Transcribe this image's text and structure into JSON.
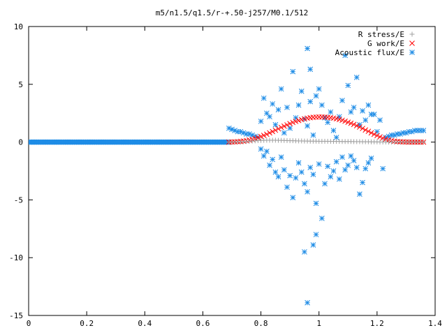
{
  "chart_data": {
    "type": "scatter",
    "title": "m5/n1.5/q1.5/r-+.50-j257/M0.1/512",
    "xlabel": "",
    "ylabel": "",
    "xlim": [
      0,
      1.4
    ],
    "ylim": [
      -15,
      10
    ],
    "x_ticks": [
      0,
      0.2,
      0.4,
      0.6,
      0.8,
      1,
      1.2,
      1.4
    ],
    "x_tick_labels": [
      "0",
      "0.2",
      "0.4",
      "0.6",
      "0.8",
      "1",
      "1.2",
      "1.4"
    ],
    "y_ticks": [
      -15,
      -10,
      -5,
      0,
      5,
      10
    ],
    "y_tick_labels": [
      "-15",
      "-10",
      "-5",
      "0",
      "5",
      "10"
    ],
    "grid": false,
    "legend_position": "top-right",
    "series": [
      {
        "name": "R stress/E",
        "marker": "plus",
        "color": "#a0a0a0",
        "description_range": [
          0.69,
          1.36
        ],
        "x": [
          0.69,
          0.7,
          0.71,
          0.72,
          0.73,
          0.74,
          0.75,
          0.76,
          0.77,
          0.78,
          0.79,
          0.8,
          0.81,
          0.82,
          0.83,
          0.84,
          0.85,
          0.86,
          0.87,
          0.88,
          0.89,
          0.9,
          0.91,
          0.92,
          0.93,
          0.94,
          0.95,
          0.96,
          0.97,
          0.98,
          0.99,
          1.0,
          1.01,
          1.02,
          1.03,
          1.04,
          1.05,
          1.06,
          1.07,
          1.08,
          1.09,
          1.1,
          1.11,
          1.12,
          1.13,
          1.14,
          1.15,
          1.16,
          1.17,
          1.18,
          1.19,
          1.2,
          1.21,
          1.22,
          1.23,
          1.24,
          1.25,
          1.26,
          1.27,
          1.28,
          1.29,
          1.3,
          1.31,
          1.32,
          1.33,
          1.34,
          1.35,
          1.36
        ],
        "y": [
          0.0,
          0.0,
          0.0,
          0.01,
          0.02,
          0.03,
          0.05,
          0.07,
          0.09,
          0.11,
          0.13,
          0.14,
          0.15,
          0.16,
          0.16,
          0.16,
          0.16,
          0.15,
          0.15,
          0.14,
          0.13,
          0.12,
          0.12,
          0.11,
          0.1,
          0.1,
          0.09,
          0.09,
          0.08,
          0.08,
          0.08,
          0.07,
          0.07,
          0.07,
          0.07,
          0.06,
          0.06,
          0.06,
          0.06,
          0.05,
          0.05,
          0.05,
          0.05,
          0.04,
          0.04,
          0.04,
          0.03,
          0.03,
          0.03,
          0.02,
          0.02,
          0.02,
          0.01,
          0.01,
          0.01,
          0.0,
          0.0,
          0.0,
          0.0,
          0.0,
          0.0,
          0.0,
          0.0,
          0.0,
          0.0,
          0.0,
          0.0,
          0.0
        ]
      },
      {
        "name": "G work/E",
        "marker": "cross",
        "color": "#ff0000",
        "x": [
          0.69,
          0.7,
          0.71,
          0.72,
          0.73,
          0.74,
          0.75,
          0.76,
          0.77,
          0.78,
          0.79,
          0.8,
          0.81,
          0.82,
          0.83,
          0.84,
          0.85,
          0.86,
          0.87,
          0.88,
          0.89,
          0.9,
          0.91,
          0.92,
          0.93,
          0.94,
          0.95,
          0.96,
          0.97,
          0.98,
          0.99,
          1.0,
          1.01,
          1.02,
          1.03,
          1.04,
          1.05,
          1.06,
          1.07,
          1.08,
          1.09,
          1.1,
          1.11,
          1.12,
          1.13,
          1.14,
          1.15,
          1.16,
          1.17,
          1.18,
          1.19,
          1.2,
          1.21,
          1.22,
          1.23,
          1.24,
          1.25,
          1.26,
          1.27,
          1.28,
          1.29,
          1.3,
          1.31,
          1.32,
          1.33,
          1.34,
          1.35,
          1.36
        ],
        "y": [
          0.0,
          0.01,
          0.02,
          0.04,
          0.06,
          0.09,
          0.13,
          0.18,
          0.24,
          0.31,
          0.39,
          0.48,
          0.58,
          0.68,
          0.8,
          0.91,
          1.03,
          1.15,
          1.27,
          1.38,
          1.49,
          1.6,
          1.7,
          1.79,
          1.87,
          1.95,
          2.01,
          2.07,
          2.11,
          2.14,
          2.16,
          2.17,
          2.17,
          2.16,
          2.14,
          2.11,
          2.07,
          2.02,
          1.96,
          1.89,
          1.81,
          1.72,
          1.63,
          1.53,
          1.42,
          1.3,
          1.18,
          1.05,
          0.93,
          0.8,
          0.68,
          0.56,
          0.45,
          0.35,
          0.26,
          0.19,
          0.13,
          0.08,
          0.05,
          0.03,
          0.02,
          0.01,
          0.0,
          0.0,
          0.0,
          0.0,
          0.0,
          0.0
        ]
      },
      {
        "name": "Acoustic flux/E",
        "marker": "star",
        "color": "#1e8ce6",
        "x": [
          0.69,
          0.7,
          0.71,
          0.72,
          0.73,
          0.74,
          0.75,
          0.76,
          0.77,
          0.78,
          0.79,
          0.8,
          0.8,
          0.81,
          0.81,
          0.82,
          0.82,
          0.83,
          0.83,
          0.84,
          0.84,
          0.85,
          0.85,
          0.86,
          0.86,
          0.87,
          0.87,
          0.88,
          0.88,
          0.89,
          0.89,
          0.9,
          0.9,
          0.91,
          0.91,
          0.92,
          0.92,
          0.93,
          0.93,
          0.94,
          0.94,
          0.95,
          0.95,
          0.96,
          0.96,
          0.97,
          0.97,
          0.98,
          0.98,
          0.99,
          0.99,
          1.0,
          1.0,
          1.01,
          1.01,
          1.02,
          1.02,
          1.03,
          1.03,
          1.04,
          1.04,
          1.05,
          1.05,
          1.06,
          1.06,
          1.07,
          1.07,
          1.08,
          1.08,
          1.09,
          1.09,
          1.1,
          1.1,
          1.11,
          1.11,
          1.12,
          1.12,
          1.13,
          1.13,
          1.14,
          1.14,
          1.15,
          1.15,
          1.16,
          1.16,
          1.17,
          1.17,
          1.18,
          1.18,
          1.19,
          1.2,
          1.21,
          1.22,
          1.23,
          1.24,
          1.25,
          1.26,
          1.27,
          1.28,
          1.29,
          1.3,
          1.31,
          1.32,
          1.33,
          1.34,
          1.35,
          1.36,
          0.96,
          0.96,
          0.97,
          0.95,
          0.98,
          0.99
        ],
        "y": [
          1.2,
          1.1,
          1.0,
          0.9,
          0.9,
          0.8,
          0.7,
          0.7,
          0.6,
          0.5,
          0.4,
          1.8,
          -0.6,
          3.8,
          -1.2,
          2.5,
          -0.8,
          2.2,
          -2.0,
          3.3,
          -1.5,
          1.5,
          -2.6,
          2.8,
          -3.0,
          4.6,
          -1.3,
          0.8,
          -2.4,
          3.0,
          -3.9,
          1.2,
          -2.9,
          6.1,
          -4.8,
          2.1,
          -3.1,
          3.2,
          -1.8,
          4.4,
          -2.6,
          2.0,
          -3.6,
          1.4,
          -4.3,
          3.5,
          -2.2,
          0.6,
          -2.8,
          4.0,
          -5.3,
          4.6,
          -1.9,
          3.2,
          -6.6,
          2.1,
          -3.6,
          1.7,
          -2.1,
          2.6,
          -3.0,
          1.0,
          -2.5,
          0.4,
          -1.7,
          2.2,
          -3.2,
          3.6,
          -1.3,
          7.5,
          -2.4,
          4.9,
          -2.0,
          2.6,
          -1.2,
          3.0,
          -1.6,
          5.6,
          -2.2,
          1.5,
          -4.5,
          2.7,
          -3.5,
          1.9,
          -2.3,
          3.2,
          -1.8,
          2.4,
          -1.4,
          2.4,
          0.9,
          1.9,
          -2.3,
          0.4,
          0.5,
          0.6,
          0.6,
          0.7,
          0.7,
          0.8,
          0.8,
          0.9,
          0.9,
          1.0,
          1.0,
          1.0,
          1.0,
          8.1,
          -13.9,
          6.3,
          -9.5,
          -8.9,
          -8.0
        ]
      }
    ],
    "baseline_series": {
      "name": "Acoustic flux/E",
      "x_range": [
        0,
        0.69
      ],
      "y": 0
    }
  }
}
